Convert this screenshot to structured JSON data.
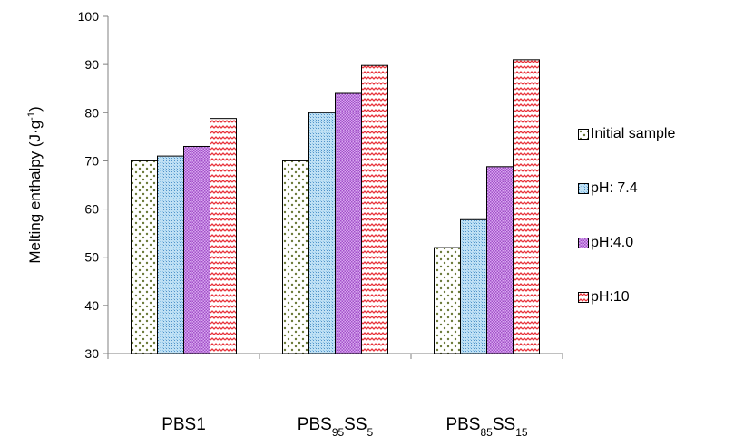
{
  "chart_data": {
    "type": "bar",
    "categories": [
      {
        "label": "PBS1",
        "parts": [
          {
            "t": "PBS1",
            "sub": false
          }
        ]
      },
      {
        "label": "PBS95SS5",
        "parts": [
          {
            "t": "PBS",
            "sub": false
          },
          {
            "t": "95",
            "sub": true
          },
          {
            "t": "SS",
            "sub": false
          },
          {
            "t": "5",
            "sub": true
          }
        ]
      },
      {
        "label": "PBS85SS15",
        "parts": [
          {
            "t": "PBS",
            "sub": false
          },
          {
            "t": "85",
            "sub": true
          },
          {
            "t": "SS",
            "sub": false
          },
          {
            "t": "15",
            "sub": true
          }
        ]
      }
    ],
    "series": [
      {
        "name": "Initial sample",
        "values": [
          70,
          70,
          52
        ],
        "color": "#6b7a3a",
        "pattern": "dots"
      },
      {
        "name": "pH: 7.4",
        "values": [
          71,
          80,
          57.8
        ],
        "color": "#4f93c9",
        "pattern": "grid"
      },
      {
        "name": "pH:4.0",
        "values": [
          73,
          84,
          68.8
        ],
        "color": "#a24fc8",
        "pattern": "checker"
      },
      {
        "name": "pH:10",
        "values": [
          78.8,
          89.8,
          91
        ],
        "color": "#e8323a",
        "pattern": "zigzag"
      }
    ],
    "ylabel": "Melting enthalpy (J·g⁻¹)",
    "ylabel_parts": {
      "main": "Melting enthalpy (J·g",
      "sup": "-1",
      "tail": ")"
    },
    "ylim": [
      30,
      100
    ],
    "yticks": [
      30,
      40,
      50,
      60,
      70,
      80,
      90,
      100
    ],
    "grid": false,
    "legend_position": "right"
  }
}
